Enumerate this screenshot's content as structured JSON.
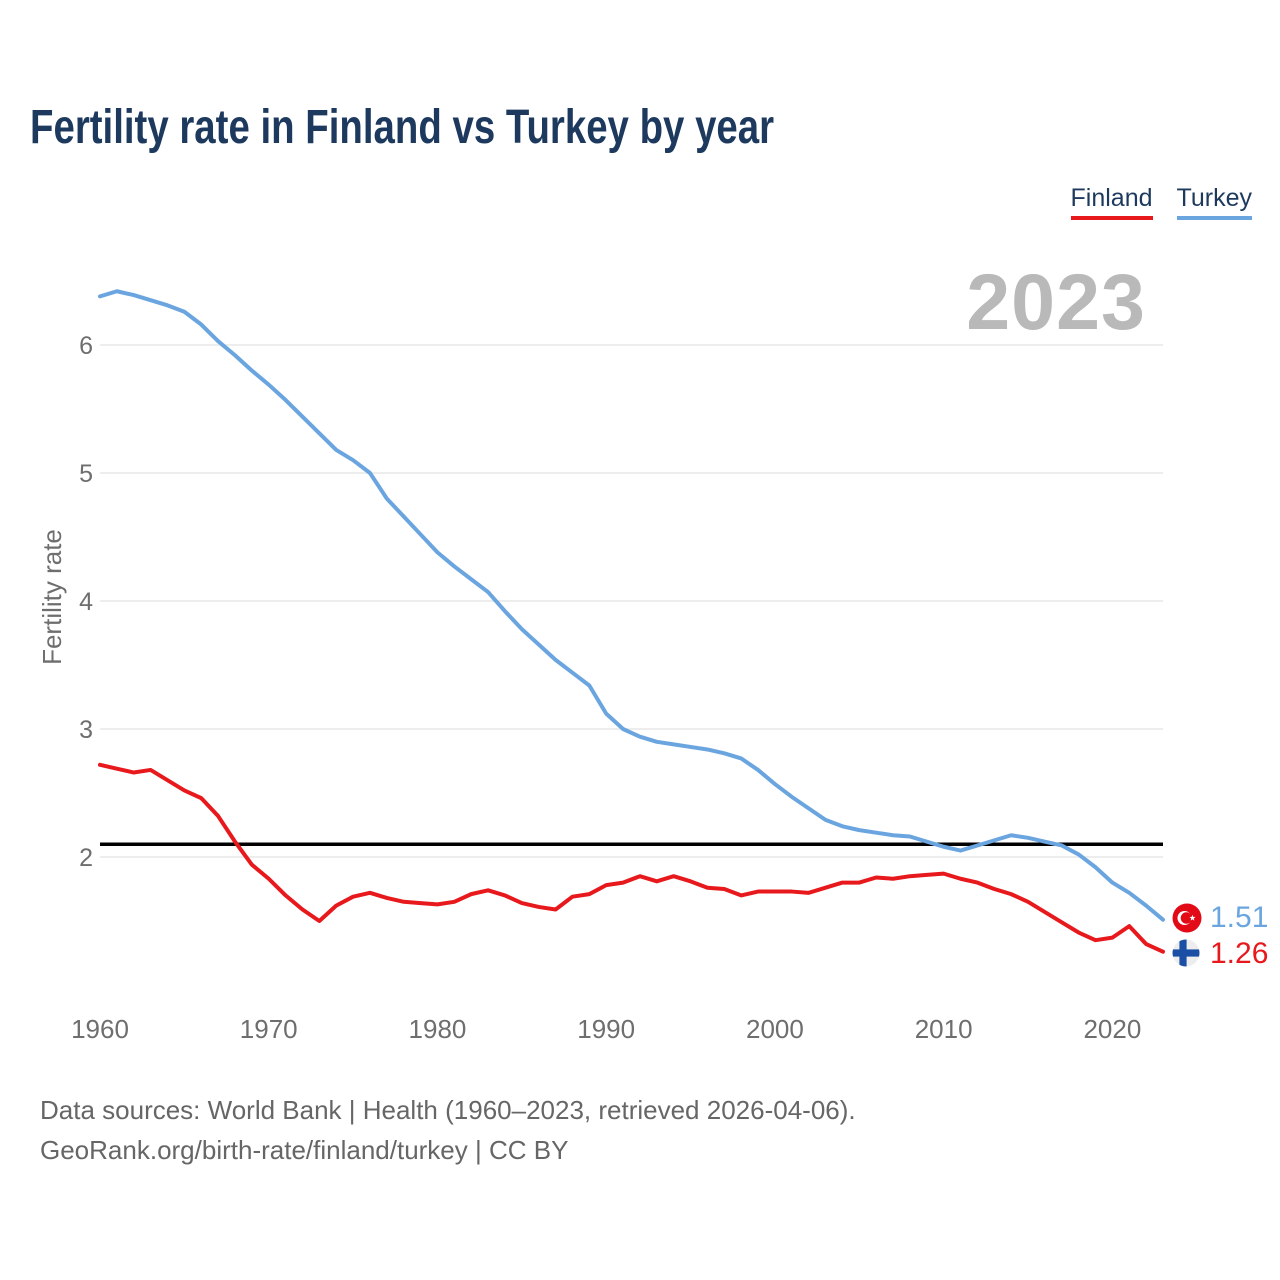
{
  "title": "Fertility rate in Finland vs Turkey by year",
  "watermark_year": "2023",
  "y_axis_label": "Fertility rate",
  "legend": {
    "items": [
      {
        "label": "Finland",
        "color": "#e8191c"
      },
      {
        "label": "Turkey",
        "color": "#6aa5e0"
      }
    ]
  },
  "end_labels": [
    {
      "series": "Turkey",
      "value": "1.51",
      "color": "#6aa5e0",
      "flag": "turkey-circle-flag"
    },
    {
      "series": "Finland",
      "value": "1.26",
      "color": "#e8191c",
      "flag": "finland-circle-flag"
    }
  ],
  "footer": {
    "line1": "Data sources: World Bank | Health (1960–2023, retrieved 2026-04-06).",
    "line2": "GeoRank.org/birth-rate/finland/turkey | CC BY"
  },
  "colors": {
    "finland_line": "#e8191c",
    "turkey_line": "#6aa5e0",
    "replacement_line": "#000000",
    "grid": "#ededed",
    "axis_text": "#6e6e6e",
    "title_text": "#1d3a5e",
    "watermark_text": "#b9b9b9",
    "turkey_flag_red": "#e30a17",
    "finland_flag_blue": "#1b4fa5"
  },
  "chart_data": {
    "type": "line",
    "title": "Fertility rate in Finland vs Turkey by year",
    "xlabel": "",
    "ylabel": "Fertility rate",
    "grid": "horizontal",
    "legend_position": "top-right",
    "xlim": [
      1960,
      2023
    ],
    "ylim": [
      1.1,
      6.6
    ],
    "yticks": [
      2,
      3,
      4,
      5,
      6
    ],
    "xticks": [
      1960,
      1970,
      1980,
      1990,
      2000,
      2010,
      2020
    ],
    "reference_line": 2.1,
    "x": [
      1960,
      1961,
      1962,
      1963,
      1964,
      1965,
      1966,
      1967,
      1968,
      1969,
      1970,
      1971,
      1972,
      1973,
      1974,
      1975,
      1976,
      1977,
      1978,
      1979,
      1980,
      1981,
      1982,
      1983,
      1984,
      1985,
      1986,
      1987,
      1988,
      1989,
      1990,
      1991,
      1992,
      1993,
      1994,
      1995,
      1996,
      1997,
      1998,
      1999,
      2000,
      2001,
      2002,
      2003,
      2004,
      2005,
      2006,
      2007,
      2008,
      2009,
      2010,
      2011,
      2012,
      2013,
      2014,
      2015,
      2016,
      2017,
      2018,
      2019,
      2020,
      2021,
      2022,
      2023
    ],
    "series": [
      {
        "name": "Finland",
        "color": "#e8191c",
        "end_value": 1.26,
        "values": [
          2.72,
          2.69,
          2.66,
          2.68,
          2.6,
          2.52,
          2.46,
          2.32,
          2.12,
          1.94,
          1.83,
          1.7,
          1.59,
          1.5,
          1.62,
          1.69,
          1.72,
          1.68,
          1.65,
          1.64,
          1.63,
          1.65,
          1.71,
          1.74,
          1.7,
          1.64,
          1.61,
          1.59,
          1.69,
          1.71,
          1.78,
          1.8,
          1.85,
          1.81,
          1.85,
          1.81,
          1.76,
          1.75,
          1.7,
          1.73,
          1.73,
          1.73,
          1.72,
          1.76,
          1.8,
          1.8,
          1.84,
          1.83,
          1.85,
          1.86,
          1.87,
          1.83,
          1.8,
          1.75,
          1.71,
          1.65,
          1.57,
          1.49,
          1.41,
          1.35,
          1.37,
          1.46,
          1.32,
          1.26
        ]
      },
      {
        "name": "Turkey",
        "color": "#6aa5e0",
        "end_value": 1.51,
        "values": [
          6.38,
          6.42,
          6.39,
          6.35,
          6.31,
          6.26,
          6.16,
          6.03,
          5.92,
          5.8,
          5.69,
          5.57,
          5.44,
          5.31,
          5.18,
          5.1,
          5.0,
          4.8,
          4.66,
          4.52,
          4.38,
          4.27,
          4.17,
          4.07,
          3.92,
          3.78,
          3.66,
          3.54,
          3.44,
          3.34,
          3.12,
          3.0,
          2.94,
          2.9,
          2.88,
          2.86,
          2.84,
          2.81,
          2.77,
          2.68,
          2.57,
          2.47,
          2.38,
          2.29,
          2.24,
          2.21,
          2.19,
          2.17,
          2.16,
          2.12,
          2.08,
          2.05,
          2.09,
          2.13,
          2.17,
          2.15,
          2.12,
          2.09,
          2.02,
          1.92,
          1.8,
          1.72,
          1.62,
          1.51
        ]
      }
    ]
  }
}
